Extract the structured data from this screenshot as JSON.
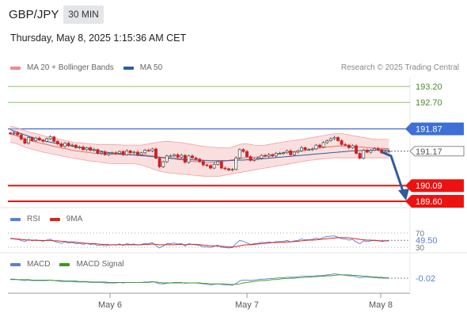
{
  "header": {
    "symbol": "GBP/JPY",
    "timeframe": "30 MIN",
    "datetime": "Thursday, May 8, 2025 1:15:36 AM CET",
    "research": "Research © 2025 Trading Central"
  },
  "legends": {
    "price": [
      {
        "label": "MA 20 + Bollinger Bands",
        "color": "#f08a8a"
      },
      {
        "label": "MA 50",
        "color": "#2e5c9a"
      }
    ],
    "rsi": [
      {
        "label": "RSI",
        "color": "#5a7fd6"
      },
      {
        "label": "9MA",
        "color": "#e02020"
      }
    ],
    "macd": [
      {
        "label": "MACD",
        "color": "#5a7fd6"
      },
      {
        "label": "MACD Signal",
        "color": "#3a9a1a"
      }
    ]
  },
  "colors": {
    "bull_candle": "#444444",
    "bear_candle": "#cc2222",
    "target_lines": "#8cc56a",
    "pivot_line": "#3d6fd6",
    "support_lines": "#ee1111",
    "arrow": "#2e5c9a"
  },
  "chart_data": [
    {
      "type": "candlestick",
      "ylim": [
        189.4,
        193.5
      ],
      "x_ticks": [
        "May 6",
        "May 7",
        "May 8"
      ],
      "levels": [
        {
          "value": 193.2,
          "label": "193.20",
          "kind": "resistance"
        },
        {
          "value": 192.7,
          "label": "192.70",
          "kind": "resistance"
        },
        {
          "value": 191.87,
          "label": "191.87",
          "kind": "pivot"
        },
        {
          "value": 191.17,
          "label": "191.17",
          "kind": "last_price"
        },
        {
          "value": 190.09,
          "label": "190.09",
          "kind": "support"
        },
        {
          "value": 189.6,
          "label": "189.60",
          "kind": "support"
        }
      ],
      "forecast_arrow": {
        "from": 191.17,
        "to": 189.65
      },
      "close": [
        191.72,
        191.74,
        191.68,
        191.55,
        191.42,
        191.6,
        191.5,
        191.58,
        191.52,
        191.48,
        191.56,
        191.62,
        191.48,
        191.4,
        191.32,
        191.42,
        191.34,
        191.36,
        191.28,
        191.3,
        191.22,
        191.28,
        191.2,
        191.22,
        191.1,
        191.14,
        191.06,
        191.1,
        191.12,
        191.1,
        191.16,
        191.06,
        191.18,
        191.12,
        191.14,
        191.06,
        191.12,
        191.2,
        191.18,
        191.24,
        190.95,
        190.68,
        190.84,
        191.02,
        191.02,
        191.06,
        190.98,
        191.04,
        190.82,
        191.02,
        190.96,
        190.92,
        190.85,
        190.74,
        190.72,
        190.64,
        190.76,
        190.84,
        190.64,
        190.62,
        190.58,
        190.6,
        190.96,
        191.22,
        191.16,
        191.0,
        190.88,
        190.92,
        190.95,
        191.04,
        191.01,
        191.06,
        191.02,
        191.1,
        191.1,
        191.12,
        191.18,
        191.06,
        191.14,
        191.18,
        191.28,
        191.22,
        191.22,
        191.24,
        191.36,
        191.3,
        191.44,
        191.5,
        191.56,
        191.6,
        191.5,
        191.38,
        191.36,
        191.28,
        191.34,
        191.1,
        190.95,
        191.2,
        191.14,
        191.2,
        191.25,
        191.22,
        191.12,
        191.16,
        191.17
      ],
      "ma20": [
        191.7,
        191.68,
        191.64,
        191.6,
        191.56,
        191.52,
        191.49,
        191.46,
        191.43,
        191.4,
        191.38,
        191.35,
        191.32,
        191.3,
        191.27,
        191.25,
        191.23,
        191.2,
        191.18,
        191.17,
        191.15,
        191.14,
        191.12,
        191.11,
        191.1,
        191.09,
        191.08,
        191.08,
        191.07,
        191.07,
        191.07,
        191.06,
        191.06,
        191.06,
        191.06,
        191.05,
        191.05,
        191.05,
        191.04,
        191.03,
        191.0,
        190.98,
        190.96,
        190.95,
        190.94,
        190.93,
        190.91,
        190.9,
        190.88,
        190.86,
        190.85,
        190.84,
        190.83,
        190.82,
        190.82,
        190.82,
        190.83,
        190.84,
        190.85,
        190.86,
        190.88,
        190.9,
        190.92,
        190.94,
        190.96,
        190.97,
        190.98,
        190.98,
        190.99,
        191.0,
        191.02,
        191.04,
        191.06,
        191.08,
        191.1,
        191.12,
        191.14,
        191.15,
        191.16,
        191.17,
        191.18,
        191.2,
        191.22,
        191.24,
        191.26,
        191.27,
        191.28,
        191.3,
        191.31,
        191.32,
        191.33,
        191.33,
        191.33,
        191.32,
        191.32,
        191.31,
        191.3,
        191.29,
        191.28,
        191.27,
        191.27,
        191.26,
        191.26,
        191.25,
        191.25
      ],
      "bb_upper": [
        191.95,
        191.93,
        191.9,
        191.86,
        191.82,
        191.78,
        191.75,
        191.72,
        191.69,
        191.66,
        191.63,
        191.6,
        191.58,
        191.56,
        191.53,
        191.51,
        191.48,
        191.46,
        191.44,
        191.43,
        191.42,
        191.41,
        191.4,
        191.39,
        191.38,
        191.38,
        191.38,
        191.38,
        191.38,
        191.37,
        191.37,
        191.36,
        191.36,
        191.36,
        191.36,
        191.36,
        191.36,
        191.38,
        191.4,
        191.42,
        191.44,
        191.46,
        191.47,
        191.48,
        191.47,
        191.46,
        191.45,
        191.44,
        191.42,
        191.4,
        191.38,
        191.36,
        191.34,
        191.32,
        191.31,
        191.3,
        191.29,
        191.28,
        191.28,
        191.27,
        191.27,
        191.3,
        191.34,
        191.38,
        191.4,
        191.4,
        191.38,
        191.36,
        191.35,
        191.35,
        191.36,
        191.38,
        191.4,
        191.42,
        191.44,
        191.46,
        191.48,
        191.49,
        191.5,
        191.52,
        191.54,
        191.56,
        191.58,
        191.6,
        191.62,
        191.64,
        191.66,
        191.68,
        191.7,
        191.72,
        191.72,
        191.72,
        191.7,
        191.68,
        191.66,
        191.64,
        191.62,
        191.6,
        191.58,
        191.56,
        191.55,
        191.54,
        191.54,
        191.54,
        191.54
      ],
      "bb_lower": [
        191.45,
        191.43,
        191.39,
        191.34,
        191.3,
        191.26,
        191.23,
        191.2,
        191.17,
        191.14,
        191.12,
        191.1,
        191.07,
        191.05,
        191.02,
        191.0,
        190.98,
        190.95,
        190.93,
        190.92,
        190.9,
        190.88,
        190.86,
        190.85,
        190.84,
        190.82,
        190.8,
        190.79,
        190.78,
        190.78,
        190.78,
        190.78,
        190.78,
        190.78,
        190.78,
        190.76,
        190.74,
        190.7,
        190.66,
        190.62,
        190.58,
        190.54,
        190.52,
        190.5,
        190.48,
        190.47,
        190.46,
        190.45,
        190.44,
        190.43,
        190.42,
        190.41,
        190.4,
        190.39,
        190.38,
        190.38,
        190.38,
        190.38,
        190.4,
        190.42,
        190.44,
        190.46,
        190.48,
        190.5,
        190.52,
        190.54,
        190.56,
        190.58,
        190.6,
        190.62,
        190.64,
        190.66,
        190.68,
        190.7,
        190.72,
        190.74,
        190.76,
        190.78,
        190.8,
        190.82,
        190.84,
        190.86,
        190.88,
        190.89,
        190.9,
        190.92,
        190.93,
        190.94,
        190.95,
        190.96,
        190.96,
        190.96,
        190.96,
        190.96,
        190.96,
        190.96,
        190.96,
        190.96,
        190.96,
        190.96,
        190.96,
        190.96,
        190.96,
        190.96,
        190.96
      ],
      "ma50": [
        191.85,
        191.8,
        191.76,
        191.72,
        191.68,
        191.64,
        191.6,
        191.57,
        191.54,
        191.51,
        191.48,
        191.45,
        191.43,
        191.41,
        191.39,
        191.37,
        191.35,
        191.33,
        191.31,
        191.29,
        191.27,
        191.25,
        191.23,
        191.21,
        191.19,
        191.17,
        191.15,
        191.13,
        191.11,
        191.1,
        191.09,
        191.08,
        191.07,
        191.06,
        191.05,
        191.04,
        191.03,
        191.02,
        191.01,
        191.0,
        190.99,
        190.98,
        190.97,
        190.96,
        190.95,
        190.94,
        190.93,
        190.92,
        190.91,
        190.9,
        190.9,
        190.89,
        190.89,
        190.88,
        190.88,
        190.87,
        190.87,
        190.87,
        190.87,
        190.87,
        190.87,
        190.88,
        190.88,
        190.89,
        190.89,
        190.9,
        190.9,
        190.91,
        190.92,
        190.93,
        190.94,
        190.95,
        190.96,
        190.97,
        190.98,
        190.99,
        191.0,
        191.01,
        191.02,
        191.03,
        191.04,
        191.05,
        191.06,
        191.07,
        191.08,
        191.09,
        191.1,
        191.11,
        191.12,
        191.13,
        191.14,
        191.15,
        191.16,
        191.17,
        191.18,
        191.18,
        191.19,
        191.19,
        191.2,
        191.2,
        191.21,
        191.21,
        191.21,
        191.21,
        191.21
      ]
    },
    {
      "type": "line",
      "indicator": "RSI",
      "ylim": [
        30,
        70
      ],
      "ticks": [
        "70",
        "30"
      ],
      "last_value_label": "49.50",
      "rsi": [
        54,
        53,
        52,
        49,
        46,
        52,
        48,
        51,
        49,
        47,
        50,
        53,
        47,
        44,
        41,
        45,
        42,
        43,
        40,
        41,
        38,
        41,
        38,
        39,
        35,
        37,
        34,
        36,
        37,
        36,
        39,
        35,
        40,
        38,
        39,
        36,
        38,
        41,
        40,
        43,
        35,
        28,
        34,
        40,
        40,
        42,
        39,
        41,
        33,
        40,
        38,
        37,
        35,
        31,
        31,
        29,
        33,
        36,
        30,
        29,
        28,
        29,
        41,
        49,
        47,
        42,
        38,
        40,
        41,
        44,
        43,
        45,
        43,
        46,
        46,
        47,
        49,
        45,
        48,
        49,
        53,
        51,
        51,
        52,
        56,
        53,
        58,
        60,
        61,
        62,
        58,
        54,
        53,
        50,
        52,
        45,
        40,
        48,
        46,
        48,
        50,
        49,
        46,
        48,
        49.5
      ],
      "ma9": [
        55,
        54,
        53,
        52,
        51,
        50,
        50,
        49,
        49,
        49,
        49,
        49,
        48,
        48,
        47,
        46,
        45,
        45,
        44,
        43,
        42,
        41,
        40,
        40,
        39,
        38,
        38,
        37,
        37,
        37,
        37,
        37,
        37,
        37,
        37,
        37,
        37,
        38,
        38,
        39,
        38,
        37,
        37,
        37,
        37,
        37,
        38,
        38,
        37,
        38,
        38,
        38,
        37,
        36,
        35,
        34,
        34,
        33,
        33,
        32,
        31,
        31,
        32,
        34,
        36,
        37,
        37,
        38,
        39,
        40,
        41,
        42,
        43,
        43,
        44,
        44,
        45,
        45,
        46,
        47,
        48,
        49,
        50,
        50,
        51,
        52,
        53,
        54,
        55,
        56,
        57,
        57,
        57,
        56,
        55,
        54,
        52,
        51,
        50,
        50,
        49,
        48,
        48,
        48,
        48
      ]
    },
    {
      "type": "line",
      "indicator": "MACD",
      "ylim": [
        -0.27,
        0.08
      ],
      "last_value_label": "-0.02",
      "macd": [
        -0.05,
        -0.05,
        -0.05,
        -0.06,
        -0.07,
        -0.06,
        -0.07,
        -0.07,
        -0.07,
        -0.07,
        -0.07,
        -0.06,
        -0.07,
        -0.08,
        -0.09,
        -0.09,
        -0.09,
        -0.09,
        -0.1,
        -0.1,
        -0.1,
        -0.1,
        -0.11,
        -0.11,
        -0.11,
        -0.11,
        -0.12,
        -0.12,
        -0.12,
        -0.12,
        -0.11,
        -0.12,
        -0.11,
        -0.11,
        -0.11,
        -0.11,
        -0.11,
        -0.1,
        -0.1,
        -0.09,
        -0.11,
        -0.14,
        -0.14,
        -0.13,
        -0.12,
        -0.11,
        -0.11,
        -0.11,
        -0.13,
        -0.12,
        -0.12,
        -0.12,
        -0.13,
        -0.14,
        -0.15,
        -0.16,
        -0.15,
        -0.14,
        -0.15,
        -0.16,
        -0.16,
        -0.17,
        -0.13,
        -0.08,
        -0.06,
        -0.06,
        -0.07,
        -0.06,
        -0.05,
        -0.04,
        -0.04,
        -0.03,
        -0.03,
        -0.02,
        -0.01,
        -0.01,
        0.0,
        0.0,
        0.0,
        0.01,
        0.02,
        0.02,
        0.02,
        0.02,
        0.03,
        0.03,
        0.04,
        0.05,
        0.06,
        0.07,
        0.06,
        0.05,
        0.04,
        0.03,
        0.03,
        0.01,
        -0.01,
        0.0,
        0.0,
        0.0,
        -0.01,
        -0.01,
        -0.02,
        -0.02,
        -0.02
      ],
      "signal": [
        -0.04,
        -0.04,
        -0.05,
        -0.05,
        -0.05,
        -0.05,
        -0.06,
        -0.06,
        -0.06,
        -0.06,
        -0.06,
        -0.06,
        -0.07,
        -0.07,
        -0.07,
        -0.08,
        -0.08,
        -0.08,
        -0.08,
        -0.09,
        -0.09,
        -0.09,
        -0.1,
        -0.1,
        -0.1,
        -0.1,
        -0.1,
        -0.11,
        -0.11,
        -0.11,
        -0.11,
        -0.11,
        -0.11,
        -0.11,
        -0.11,
        -0.11,
        -0.11,
        -0.11,
        -0.11,
        -0.1,
        -0.1,
        -0.11,
        -0.12,
        -0.12,
        -0.12,
        -0.12,
        -0.12,
        -0.12,
        -0.12,
        -0.12,
        -0.12,
        -0.12,
        -0.12,
        -0.13,
        -0.13,
        -0.14,
        -0.14,
        -0.14,
        -0.14,
        -0.14,
        -0.15,
        -0.15,
        -0.15,
        -0.14,
        -0.12,
        -0.11,
        -0.1,
        -0.09,
        -0.08,
        -0.07,
        -0.07,
        -0.06,
        -0.05,
        -0.05,
        -0.04,
        -0.03,
        -0.03,
        -0.02,
        -0.02,
        -0.01,
        -0.01,
        0.0,
        0.0,
        0.01,
        0.01,
        0.02,
        0.02,
        0.03,
        0.03,
        0.04,
        0.05,
        0.05,
        0.05,
        0.05,
        0.04,
        0.04,
        0.03,
        0.02,
        0.02,
        0.01,
        0.01,
        0.0,
        0.0,
        -0.01,
        -0.01
      ]
    }
  ]
}
